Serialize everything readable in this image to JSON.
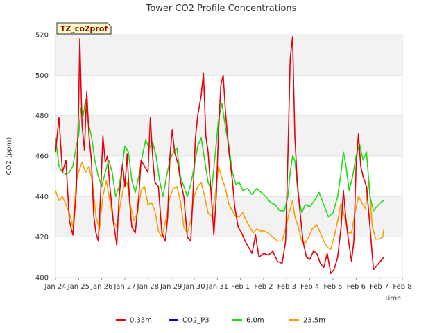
{
  "chart_data": {
    "type": "line",
    "title": "Tower CO2 Profile Concentrations",
    "xlabel": "Time",
    "ylabel": "CO2 (ppm)",
    "tag": "TZ_co2prof",
    "ylim": [
      400,
      520
    ],
    "yticks": [
      400,
      420,
      440,
      460,
      480,
      500,
      520
    ],
    "xlim": [
      0,
      15
    ],
    "xticks": [
      {
        "x": 0,
        "label": "Jan 24"
      },
      {
        "x": 1,
        "label": "Jan 25"
      },
      {
        "x": 2,
        "label": "Jan 26"
      },
      {
        "x": 3,
        "label": "Jan 27"
      },
      {
        "x": 4,
        "label": "Jan 28"
      },
      {
        "x": 5,
        "label": "Jan 29"
      },
      {
        "x": 6,
        "label": "Jan 30"
      },
      {
        "x": 7,
        "label": "Jan 31"
      },
      {
        "x": 8,
        "label": "Feb 1"
      },
      {
        "x": 9,
        "label": "Feb 2"
      },
      {
        "x": 10,
        "label": "Feb 3"
      },
      {
        "x": 11,
        "label": "Feb 4"
      },
      {
        "x": 12,
        "label": "Feb 5"
      },
      {
        "x": 13,
        "label": "Feb 6"
      },
      {
        "x": 14,
        "label": "Feb 7"
      },
      {
        "x": 15,
        "label": "Feb 8"
      }
    ],
    "x_unit": "days since Jan 24",
    "series": [
      {
        "name": "0.35m",
        "color": "#e8000b",
        "points": [
          [
            0.0,
            462
          ],
          [
            0.15,
            479
          ],
          [
            0.3,
            452
          ],
          [
            0.45,
            458
          ],
          [
            0.6,
            428
          ],
          [
            0.75,
            421
          ],
          [
            0.9,
            443
          ],
          [
            1.0,
            484
          ],
          [
            1.05,
            518
          ],
          [
            1.15,
            475
          ],
          [
            1.25,
            463
          ],
          [
            1.35,
            492
          ],
          [
            1.45,
            470
          ],
          [
            1.55,
            458
          ],
          [
            1.65,
            431
          ],
          [
            1.75,
            422
          ],
          [
            1.85,
            418
          ],
          [
            1.95,
            441
          ],
          [
            2.05,
            470
          ],
          [
            2.15,
            457
          ],
          [
            2.25,
            460
          ],
          [
            2.35,
            445
          ],
          [
            2.5,
            428
          ],
          [
            2.65,
            416
          ],
          [
            2.75,
            440
          ],
          [
            2.9,
            456
          ],
          [
            3.0,
            445
          ],
          [
            3.1,
            461
          ],
          [
            3.2,
            438
          ],
          [
            3.3,
            425
          ],
          [
            3.45,
            422
          ],
          [
            3.6,
            440
          ],
          [
            3.7,
            458
          ],
          [
            3.85,
            455
          ],
          [
            4.0,
            452
          ],
          [
            4.1,
            479
          ],
          [
            4.2,
            460
          ],
          [
            4.3,
            447
          ],
          [
            4.45,
            445
          ],
          [
            4.6,
            422
          ],
          [
            4.75,
            418
          ],
          [
            4.85,
            430
          ],
          [
            4.95,
            460
          ],
          [
            5.05,
            473
          ],
          [
            5.15,
            462
          ],
          [
            5.3,
            456
          ],
          [
            5.4,
            448
          ],
          [
            5.55,
            440
          ],
          [
            5.7,
            420
          ],
          [
            5.85,
            418
          ],
          [
            5.95,
            442
          ],
          [
            6.05,
            469
          ],
          [
            6.15,
            480
          ],
          [
            6.3,
            490
          ],
          [
            6.4,
            501
          ],
          [
            6.5,
            470
          ],
          [
            6.6,
            462
          ],
          [
            6.75,
            438
          ],
          [
            6.85,
            421
          ],
          [
            6.95,
            440
          ],
          [
            7.05,
            472
          ],
          [
            7.15,
            495
          ],
          [
            7.25,
            500
          ],
          [
            7.35,
            482
          ],
          [
            7.5,
            462
          ],
          [
            7.65,
            448
          ],
          [
            7.75,
            435
          ],
          [
            7.9,
            425
          ],
          [
            8.05,
            422
          ],
          [
            8.2,
            418
          ],
          [
            8.35,
            415
          ],
          [
            8.5,
            412
          ],
          [
            8.65,
            421
          ],
          [
            8.8,
            410
          ],
          [
            9.0,
            412
          ],
          [
            9.2,
            411
          ],
          [
            9.4,
            413
          ],
          [
            9.6,
            408
          ],
          [
            9.8,
            407
          ],
          [
            9.95,
            418
          ],
          [
            10.05,
            460
          ],
          [
            10.15,
            508
          ],
          [
            10.25,
            519
          ],
          [
            10.35,
            470
          ],
          [
            10.45,
            448
          ],
          [
            10.55,
            435
          ],
          [
            10.7,
            418
          ],
          [
            10.85,
            410
          ],
          [
            11.0,
            409
          ],
          [
            11.15,
            413
          ],
          [
            11.3,
            412
          ],
          [
            11.45,
            407
          ],
          [
            11.6,
            405
          ],
          [
            11.75,
            412
          ],
          [
            11.9,
            402
          ],
          [
            12.05,
            404
          ],
          [
            12.2,
            410
          ],
          [
            12.35,
            425
          ],
          [
            12.45,
            443
          ],
          [
            12.55,
            430
          ],
          [
            12.65,
            420
          ],
          [
            12.8,
            408
          ],
          [
            12.9,
            418
          ],
          [
            13.0,
            455
          ],
          [
            13.1,
            471
          ],
          [
            13.2,
            455
          ],
          [
            13.3,
            450
          ],
          [
            13.45,
            445
          ],
          [
            13.6,
            425
          ],
          [
            13.75,
            404
          ],
          [
            13.9,
            406
          ],
          [
            14.05,
            408
          ],
          [
            14.2,
            410
          ]
        ]
      },
      {
        "name": "CO2_P3",
        "color": "#1a00b4",
        "points": []
      },
      {
        "name": "6.0m",
        "color": "#1edc14",
        "points": [
          [
            0.0,
            469
          ],
          [
            0.15,
            455
          ],
          [
            0.3,
            452
          ],
          [
            0.45,
            451
          ],
          [
            0.6,
            452
          ],
          [
            0.75,
            455
          ],
          [
            0.9,
            465
          ],
          [
            1.0,
            470
          ],
          [
            1.1,
            484
          ],
          [
            1.2,
            480
          ],
          [
            1.3,
            488
          ],
          [
            1.4,
            477
          ],
          [
            1.55,
            470
          ],
          [
            1.7,
            458
          ],
          [
            1.85,
            450
          ],
          [
            2.0,
            445
          ],
          [
            2.15,
            452
          ],
          [
            2.3,
            458
          ],
          [
            2.45,
            452
          ],
          [
            2.6,
            440
          ],
          [
            2.75,
            445
          ],
          [
            2.9,
            456
          ],
          [
            3.0,
            465
          ],
          [
            3.15,
            462
          ],
          [
            3.3,
            448
          ],
          [
            3.45,
            442
          ],
          [
            3.6,
            450
          ],
          [
            3.75,
            460
          ],
          [
            3.9,
            468
          ],
          [
            4.05,
            464
          ],
          [
            4.2,
            467
          ],
          [
            4.35,
            460
          ],
          [
            4.5,
            448
          ],
          [
            4.65,
            440
          ],
          [
            4.8,
            450
          ],
          [
            4.95,
            458
          ],
          [
            5.1,
            462
          ],
          [
            5.25,
            464
          ],
          [
            5.4,
            450
          ],
          [
            5.55,
            445
          ],
          [
            5.7,
            440
          ],
          [
            5.85,
            446
          ],
          [
            6.0,
            455
          ],
          [
            6.15,
            465
          ],
          [
            6.3,
            469
          ],
          [
            6.45,
            458
          ],
          [
            6.6,
            447
          ],
          [
            6.75,
            443
          ],
          [
            6.9,
            460
          ],
          [
            7.05,
            478
          ],
          [
            7.2,
            486
          ],
          [
            7.35,
            474
          ],
          [
            7.5,
            465
          ],
          [
            7.65,
            452
          ],
          [
            7.8,
            446
          ],
          [
            7.95,
            447
          ],
          [
            8.1,
            443
          ],
          [
            8.3,
            444
          ],
          [
            8.5,
            441
          ],
          [
            8.7,
            444
          ],
          [
            8.9,
            442
          ],
          [
            9.1,
            440
          ],
          [
            9.3,
            437
          ],
          [
            9.5,
            436
          ],
          [
            9.7,
            433
          ],
          [
            9.9,
            433
          ],
          [
            10.05,
            440
          ],
          [
            10.15,
            452
          ],
          [
            10.25,
            460
          ],
          [
            10.35,
            458
          ],
          [
            10.5,
            440
          ],
          [
            10.65,
            432
          ],
          [
            10.8,
            436
          ],
          [
            11.0,
            435
          ],
          [
            11.2,
            438
          ],
          [
            11.4,
            442
          ],
          [
            11.6,
            436
          ],
          [
            11.8,
            430
          ],
          [
            12.0,
            432
          ],
          [
            12.2,
            440
          ],
          [
            12.35,
            452
          ],
          [
            12.45,
            462
          ],
          [
            12.55,
            456
          ],
          [
            12.7,
            443
          ],
          [
            12.85,
            450
          ],
          [
            13.0,
            460
          ],
          [
            13.15,
            466
          ],
          [
            13.3,
            458
          ],
          [
            13.45,
            462
          ],
          [
            13.6,
            440
          ],
          [
            13.75,
            433
          ],
          [
            13.9,
            435
          ],
          [
            14.05,
            437
          ],
          [
            14.2,
            438
          ]
        ]
      },
      {
        "name": "23.5m",
        "color": "#f5a000",
        "points": [
          [
            0.0,
            443
          ],
          [
            0.15,
            438
          ],
          [
            0.3,
            440
          ],
          [
            0.45,
            436
          ],
          [
            0.6,
            432
          ],
          [
            0.75,
            425
          ],
          [
            0.9,
            448
          ],
          [
            1.0,
            452
          ],
          [
            1.15,
            457
          ],
          [
            1.3,
            452
          ],
          [
            1.45,
            455
          ],
          [
            1.6,
            447
          ],
          [
            1.75,
            430
          ],
          [
            1.9,
            424
          ],
          [
            2.05,
            440
          ],
          [
            2.2,
            448
          ],
          [
            2.35,
            438
          ],
          [
            2.5,
            428
          ],
          [
            2.65,
            425
          ],
          [
            2.8,
            436
          ],
          [
            2.95,
            445
          ],
          [
            3.1,
            447
          ],
          [
            3.25,
            435
          ],
          [
            3.4,
            428
          ],
          [
            3.55,
            432
          ],
          [
            3.7,
            443
          ],
          [
            3.85,
            445
          ],
          [
            4.0,
            436
          ],
          [
            4.15,
            437
          ],
          [
            4.3,
            433
          ],
          [
            4.45,
            423
          ],
          [
            4.6,
            420
          ],
          [
            4.8,
            430
          ],
          [
            4.95,
            440
          ],
          [
            5.1,
            444
          ],
          [
            5.25,
            445
          ],
          [
            5.4,
            438
          ],
          [
            5.55,
            425
          ],
          [
            5.7,
            422
          ],
          [
            5.85,
            428
          ],
          [
            6.0,
            440
          ],
          [
            6.15,
            445
          ],
          [
            6.3,
            447
          ],
          [
            6.45,
            440
          ],
          [
            6.6,
            432
          ],
          [
            6.75,
            430
          ],
          [
            6.9,
            440
          ],
          [
            7.05,
            455
          ],
          [
            7.2,
            449
          ],
          [
            7.35,
            444
          ],
          [
            7.5,
            436
          ],
          [
            7.65,
            433
          ],
          [
            7.8,
            430
          ],
          [
            7.95,
            430
          ],
          [
            8.1,
            432
          ],
          [
            8.25,
            428
          ],
          [
            8.4,
            425
          ],
          [
            8.55,
            422
          ],
          [
            8.7,
            424
          ],
          [
            8.85,
            423
          ],
          [
            9.0,
            423
          ],
          [
            9.2,
            422
          ],
          [
            9.4,
            420
          ],
          [
            9.6,
            418
          ],
          [
            9.8,
            418
          ],
          [
            9.95,
            424
          ],
          [
            10.1,
            432
          ],
          [
            10.25,
            438
          ],
          [
            10.35,
            430
          ],
          [
            10.5,
            425
          ],
          [
            10.65,
            418
          ],
          [
            10.8,
            417
          ],
          [
            10.95,
            420
          ],
          [
            11.1,
            424
          ],
          [
            11.3,
            426
          ],
          [
            11.45,
            422
          ],
          [
            11.6,
            418
          ],
          [
            11.75,
            415
          ],
          [
            11.9,
            414
          ],
          [
            12.05,
            420
          ],
          [
            12.2,
            428
          ],
          [
            12.35,
            437
          ],
          [
            12.5,
            430
          ],
          [
            12.65,
            422
          ],
          [
            12.8,
            422
          ],
          [
            12.95,
            432
          ],
          [
            13.1,
            440
          ],
          [
            13.25,
            437
          ],
          [
            13.4,
            434
          ],
          [
            13.55,
            448
          ],
          [
            13.7,
            425
          ],
          [
            13.85,
            419
          ],
          [
            14.0,
            419
          ],
          [
            14.15,
            420
          ],
          [
            14.2,
            424
          ]
        ]
      }
    ],
    "legend_position": "bottom-center"
  }
}
